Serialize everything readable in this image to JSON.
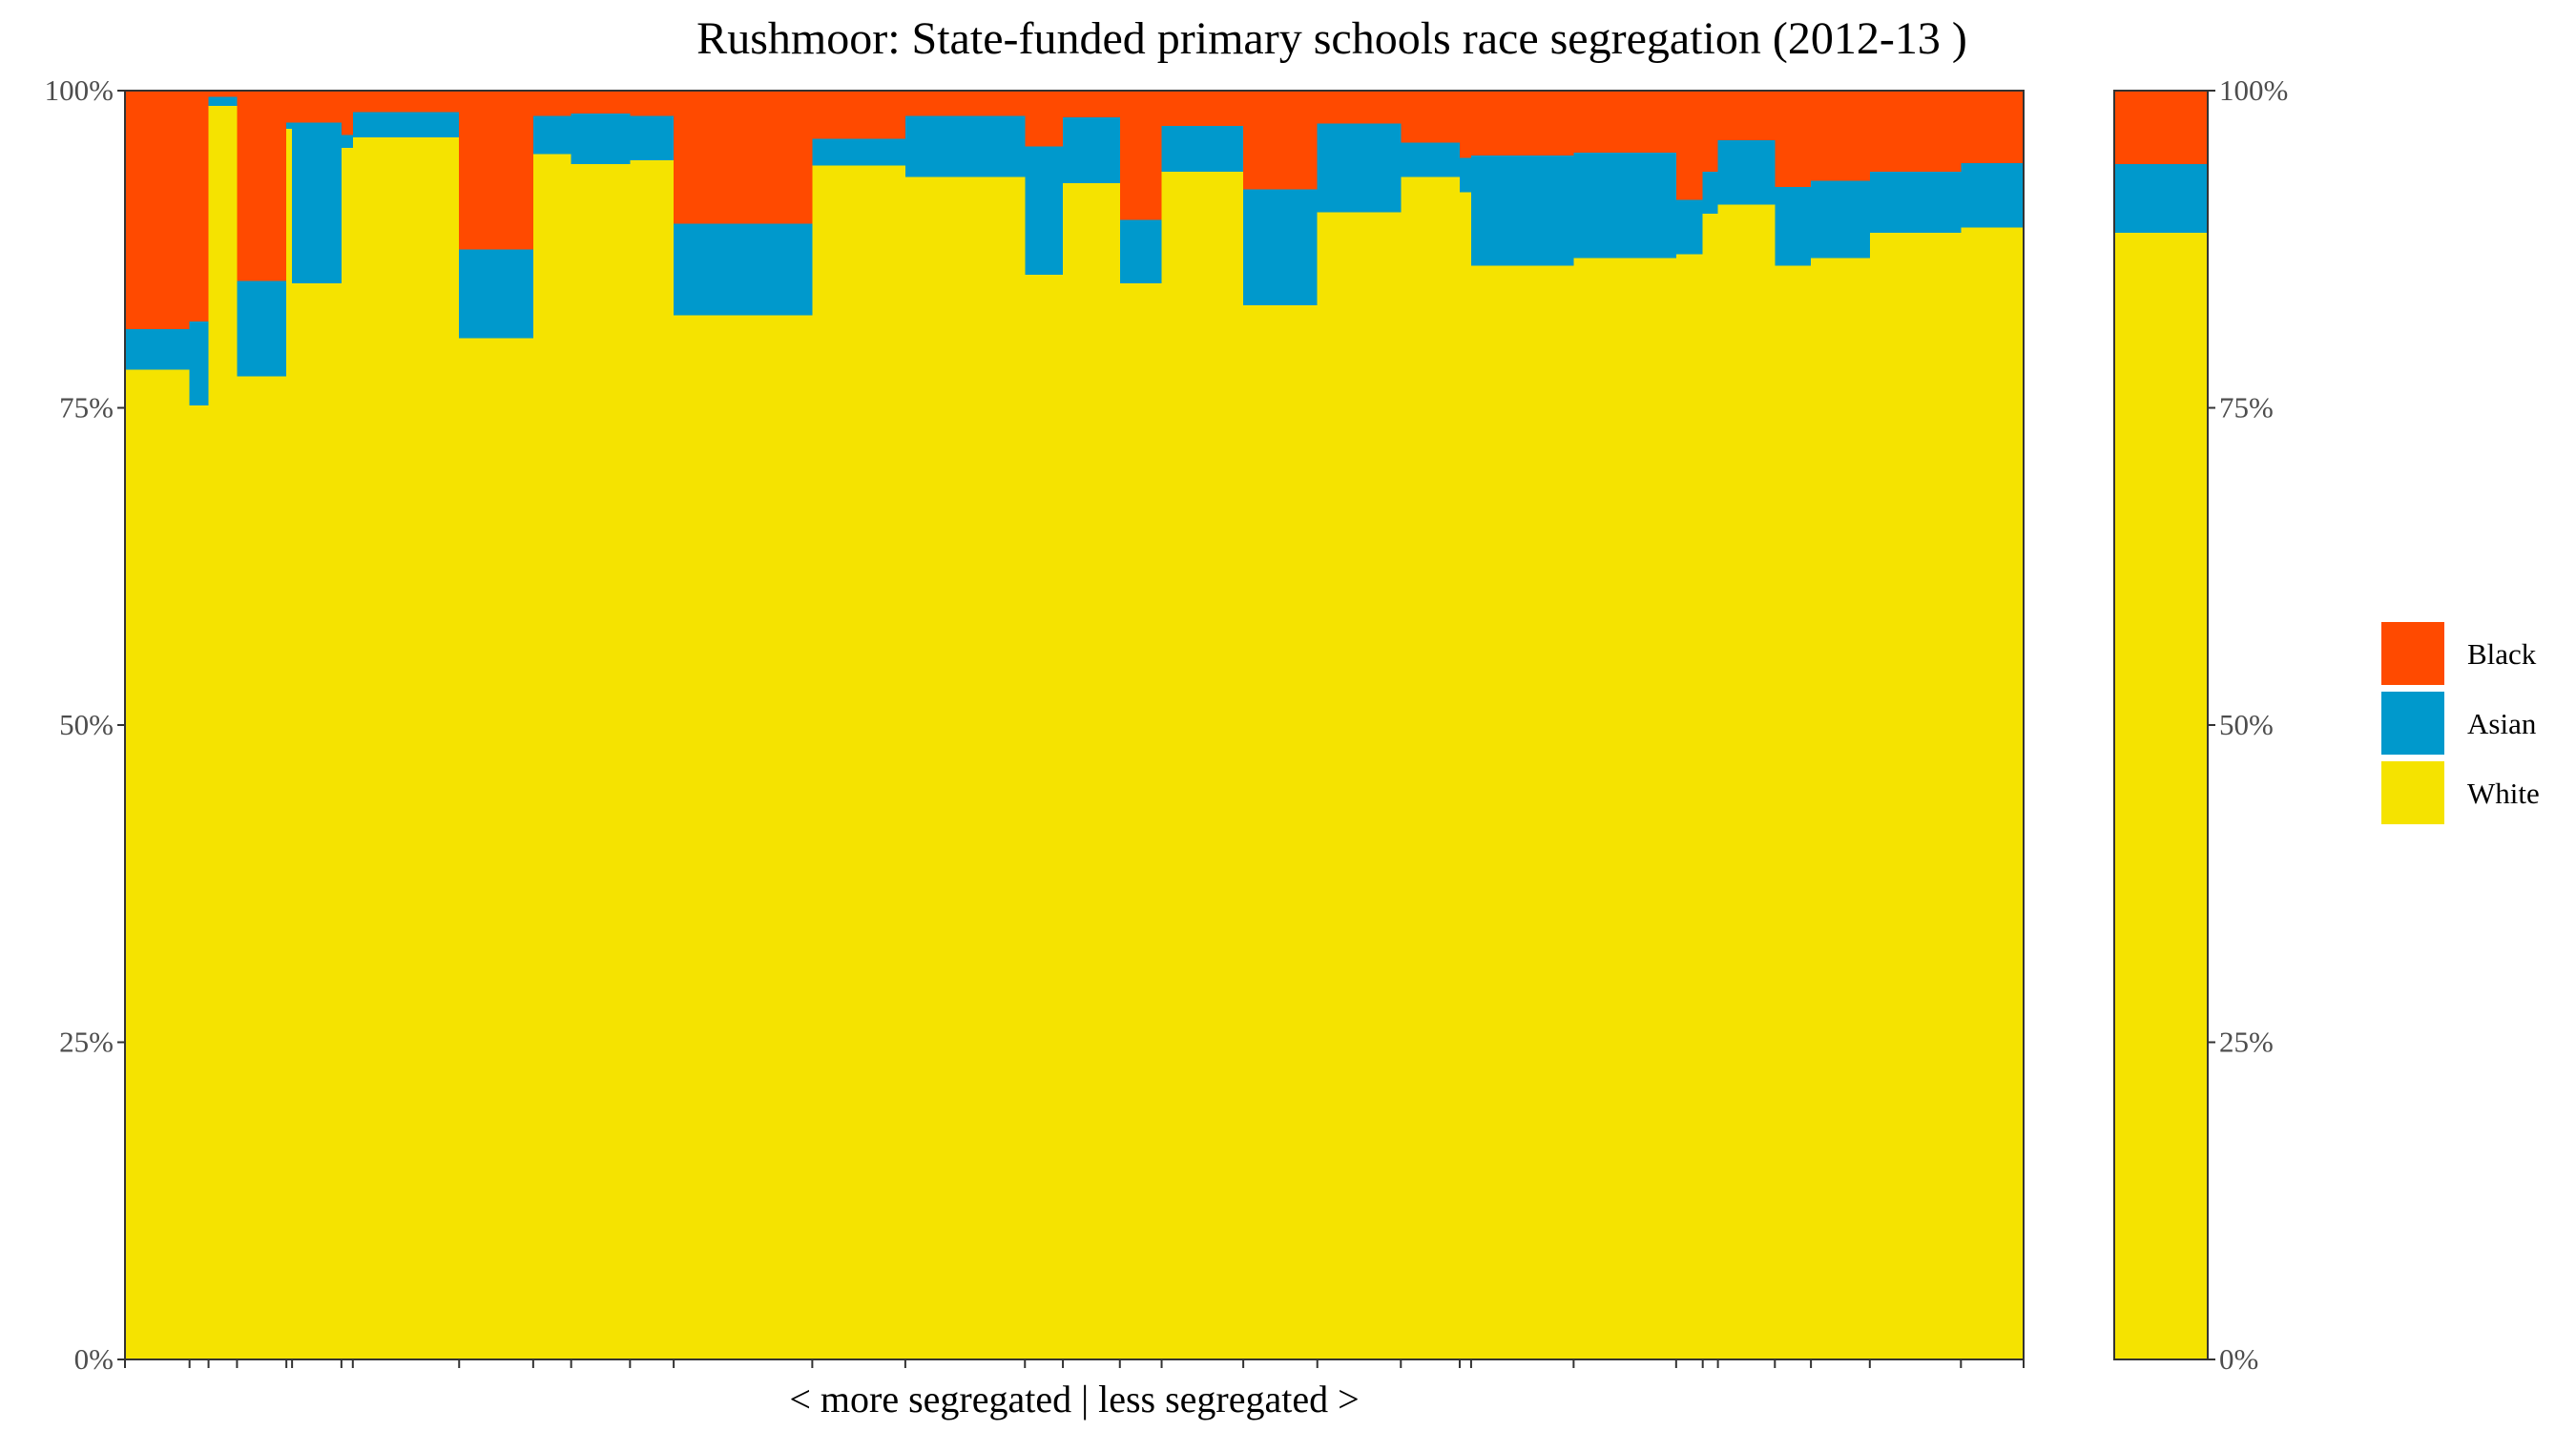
{
  "chart_data": {
    "type": "bar",
    "variant": "stacked-100-variable-width",
    "title": "Rushmoor: State-funded primary schools race segregation (2012-13 )",
    "xlabel": "< more segregated | less segregated >",
    "ylabel": "",
    "ylim": [
      0,
      1
    ],
    "y_ticks": [
      "0%",
      "25%",
      "50%",
      "75%",
      "100%"
    ],
    "legend": {
      "position": "right",
      "entries": [
        "Black",
        "Asian",
        "White"
      ]
    },
    "series_colors": {
      "White": "#f5e300",
      "Asian": "#0099cc",
      "Black": "#ff4a00"
    },
    "x_total": 100,
    "schools": [
      {
        "start": 0.0,
        "end": 3.4,
        "white": 0.78,
        "asian": 0.032,
        "black": 0.188
      },
      {
        "start": 3.4,
        "end": 4.4,
        "white": 0.752,
        "asian": 0.066,
        "black": 0.182
      },
      {
        "start": 4.4,
        "end": 5.9,
        "white": 0.988,
        "asian": 0.007,
        "black": 0.005
      },
      {
        "start": 5.9,
        "end": 8.5,
        "white": 0.775,
        "asian": 0.075,
        "black": 0.15
      },
      {
        "start": 8.5,
        "end": 8.8,
        "white": 0.97,
        "asian": 0.005,
        "black": 0.025
      },
      {
        "start": 8.8,
        "end": 11.4,
        "white": 0.848,
        "asian": 0.127,
        "black": 0.025
      },
      {
        "start": 11.4,
        "end": 12.0,
        "white": 0.955,
        "asian": 0.01,
        "black": 0.035
      },
      {
        "start": 12.0,
        "end": 17.6,
        "white": 0.963,
        "asian": 0.02,
        "black": 0.017
      },
      {
        "start": 17.6,
        "end": 21.5,
        "white": 0.805,
        "asian": 0.07,
        "black": 0.125
      },
      {
        "start": 21.5,
        "end": 23.5,
        "white": 0.95,
        "asian": 0.03,
        "black": 0.02
      },
      {
        "start": 23.5,
        "end": 26.6,
        "white": 0.942,
        "asian": 0.04,
        "black": 0.018
      },
      {
        "start": 26.6,
        "end": 28.9,
        "white": 0.945,
        "asian": 0.035,
        "black": 0.02
      },
      {
        "start": 28.9,
        "end": 36.2,
        "white": 0.823,
        "asian": 0.072,
        "black": 0.105
      },
      {
        "start": 36.2,
        "end": 41.1,
        "white": 0.941,
        "asian": 0.021,
        "black": 0.038
      },
      {
        "start": 41.1,
        "end": 47.4,
        "white": 0.932,
        "asian": 0.048,
        "black": 0.02
      },
      {
        "start": 47.4,
        "end": 49.4,
        "white": 0.855,
        "asian": 0.101,
        "black": 0.044
      },
      {
        "start": 49.4,
        "end": 52.4,
        "white": 0.927,
        "asian": 0.052,
        "black": 0.021
      },
      {
        "start": 52.4,
        "end": 54.6,
        "white": 0.848,
        "asian": 0.05,
        "black": 0.102
      },
      {
        "start": 54.6,
        "end": 58.9,
        "white": 0.936,
        "asian": 0.036,
        "black": 0.028
      },
      {
        "start": 58.9,
        "end": 62.8,
        "white": 0.831,
        "asian": 0.091,
        "black": 0.078
      },
      {
        "start": 62.8,
        "end": 67.2,
        "white": 0.904,
        "asian": 0.07,
        "black": 0.026
      },
      {
        "start": 67.2,
        "end": 70.3,
        "white": 0.932,
        "asian": 0.027,
        "black": 0.041
      },
      {
        "start": 70.3,
        "end": 70.9,
        "white": 0.92,
        "asian": 0.027,
        "black": 0.053
      },
      {
        "start": 70.9,
        "end": 76.3,
        "white": 0.862,
        "asian": 0.087,
        "black": 0.051
      },
      {
        "start": 76.3,
        "end": 81.7,
        "white": 0.868,
        "asian": 0.083,
        "black": 0.049
      },
      {
        "start": 81.7,
        "end": 83.1,
        "white": 0.871,
        "asian": 0.043,
        "black": 0.086
      },
      {
        "start": 83.1,
        "end": 83.9,
        "white": 0.903,
        "asian": 0.033,
        "black": 0.064
      },
      {
        "start": 83.9,
        "end": 86.9,
        "white": 0.91,
        "asian": 0.051,
        "black": 0.039
      },
      {
        "start": 86.9,
        "end": 88.8,
        "white": 0.862,
        "asian": 0.062,
        "black": 0.076
      },
      {
        "start": 88.8,
        "end": 91.9,
        "white": 0.868,
        "asian": 0.061,
        "black": 0.071
      },
      {
        "start": 91.9,
        "end": 96.7,
        "white": 0.888,
        "asian": 0.048,
        "black": 0.064
      },
      {
        "start": 96.7,
        "end": 100.0,
        "white": 0.892,
        "asian": 0.051,
        "black": 0.057
      }
    ],
    "overall": {
      "white": 0.888,
      "asian": 0.054,
      "black": 0.058
    }
  }
}
